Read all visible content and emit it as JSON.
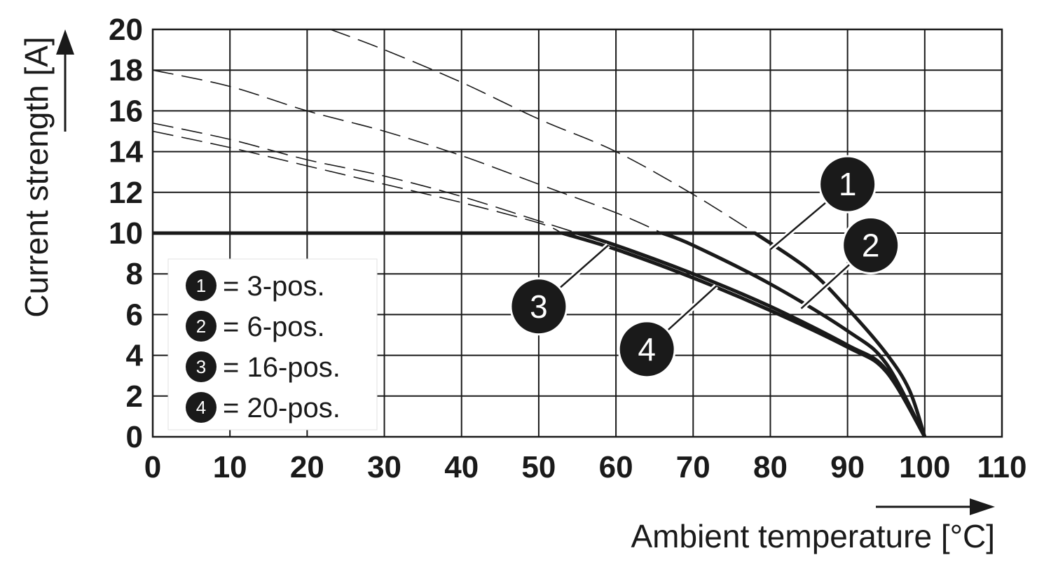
{
  "chart_data": {
    "type": "line",
    "xlabel": "Ambient temperature [°C]",
    "ylabel": "Current strength [A]",
    "xlim": [
      0,
      110
    ],
    "ylim": [
      0,
      20
    ],
    "x_ticks": [
      "0",
      "10",
      "20",
      "30",
      "40",
      "50",
      "60",
      "70",
      "80",
      "90",
      "100",
      "110"
    ],
    "y_ticks": [
      "0",
      "2",
      "4",
      "6",
      "8",
      "10",
      "12",
      "14",
      "16",
      "18",
      "20"
    ],
    "grid": true,
    "legend_position": "bottom-left",
    "legend": [
      {
        "marker": "1",
        "label": "= 3-pos."
      },
      {
        "marker": "2",
        "label": "= 6-pos."
      },
      {
        "marker": "3",
        "label": "= 16-pos."
      },
      {
        "marker": "4",
        "label": "= 20-pos."
      }
    ],
    "series": [
      {
        "marker": "1",
        "x": [
          0,
          78,
          85,
          90,
          95,
          98,
          100
        ],
        "y": [
          10,
          10,
          8.2,
          6.3,
          4.1,
          2.3,
          0
        ],
        "dashed_x": [
          23,
          30,
          40,
          50,
          60,
          70,
          78
        ],
        "dashed_y": [
          20,
          19.0,
          17.4,
          15.6,
          14.0,
          11.9,
          10
        ]
      },
      {
        "marker": "2",
        "x": [
          0,
          66,
          70,
          80,
          90,
          95,
          100
        ],
        "y": [
          10,
          10,
          9.4,
          7.5,
          5.2,
          3.6,
          0
        ],
        "dashed_x": [
          0,
          10,
          20,
          30,
          40,
          50,
          60,
          66
        ],
        "dashed_y": [
          18,
          17.2,
          16.0,
          15.0,
          13.8,
          12.4,
          11.0,
          10
        ]
      },
      {
        "marker": "3",
        "x": [
          0,
          55,
          60,
          70,
          80,
          90,
          95,
          100
        ],
        "y": [
          10,
          10,
          9.4,
          8.0,
          6.4,
          4.5,
          3.3,
          0
        ],
        "dashed_x": [
          0,
          10,
          20,
          30,
          40,
          50,
          55
        ],
        "dashed_y": [
          15.4,
          14.6,
          13.6,
          12.8,
          11.8,
          10.6,
          10
        ]
      },
      {
        "marker": "4",
        "x": [
          0,
          53,
          60,
          70,
          80,
          90,
          95,
          100
        ],
        "y": [
          10,
          10,
          9.2,
          7.8,
          6.2,
          4.4,
          3.2,
          0
        ],
        "dashed_x": [
          0,
          10,
          20,
          30,
          40,
          50,
          53
        ],
        "dashed_y": [
          15.0,
          14.2,
          13.3,
          12.4,
          11.5,
          10.5,
          10
        ]
      }
    ],
    "callouts": [
      {
        "marker": "1",
        "at_x": 80,
        "at_y": 9.2,
        "label_x": 90,
        "label_y": 12.4
      },
      {
        "marker": "2",
        "at_x": 84,
        "at_y": 6.3,
        "label_x": 93,
        "label_y": 9.4
      },
      {
        "marker": "3",
        "at_x": 59,
        "at_y": 9.4,
        "label_x": 50,
        "label_y": 6.4
      },
      {
        "marker": "4",
        "at_x": 73,
        "at_y": 7.4,
        "label_x": 64,
        "label_y": 4.3
      }
    ]
  }
}
